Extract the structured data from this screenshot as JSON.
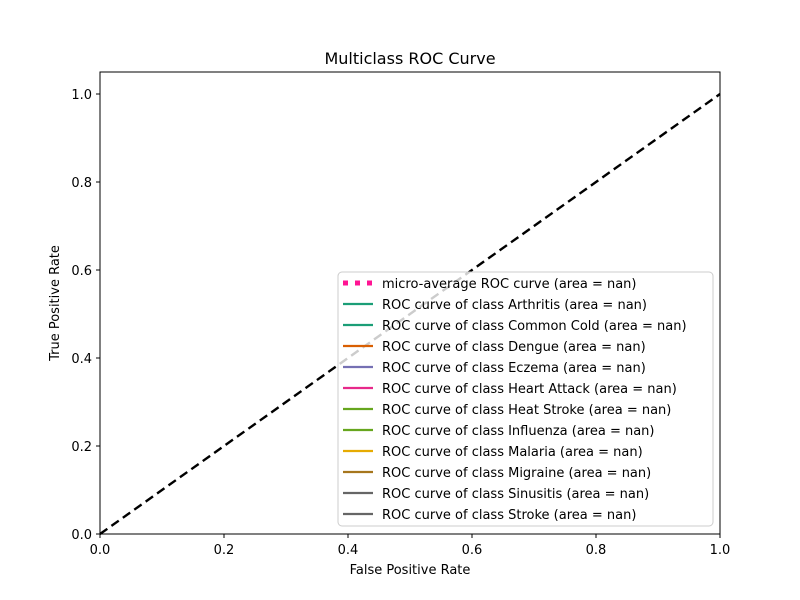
{
  "chart_data": {
    "type": "line",
    "title": "Multiclass ROC Curve",
    "xlabel": "False Positive Rate",
    "ylabel": "True Positive Rate",
    "xlim": [
      0.0,
      1.0
    ],
    "ylim": [
      0.0,
      1.05
    ],
    "xticks": [
      "0.0",
      "0.2",
      "0.4",
      "0.6",
      "0.8",
      "1.0"
    ],
    "xtick_values": [
      0.0,
      0.2,
      0.4,
      0.6,
      0.8,
      1.0
    ],
    "yticks": [
      "0.0",
      "0.2",
      "0.4",
      "0.6",
      "0.8",
      "1.0"
    ],
    "ytick_values": [
      0.0,
      0.2,
      0.4,
      0.6,
      0.8,
      1.0
    ],
    "grid": false,
    "legend_position": "lower-right",
    "reference_line": {
      "x": [
        0.0,
        1.0
      ],
      "y": [
        0.0,
        1.0
      ],
      "color": "#000000",
      "style": "dashed"
    },
    "series": [
      {
        "name": "micro-average ROC curve (area = nan)",
        "color": "#ff1493",
        "style": "dotted",
        "x": [],
        "y": []
      },
      {
        "name": "ROC curve of class Arthritis (area = nan)",
        "color": "#1b9e77",
        "style": "solid",
        "x": [],
        "y": []
      },
      {
        "name": "ROC curve of class Common Cold (area = nan)",
        "color": "#1b9e77",
        "style": "solid",
        "x": [],
        "y": []
      },
      {
        "name": "ROC curve of class Dengue (area = nan)",
        "color": "#d95f02",
        "style": "solid",
        "x": [],
        "y": []
      },
      {
        "name": "ROC curve of class Eczema (area = nan)",
        "color": "#7570b3",
        "style": "solid",
        "x": [],
        "y": []
      },
      {
        "name": "ROC curve of class Heart Attack (area = nan)",
        "color": "#e7298a",
        "style": "solid",
        "x": [],
        "y": []
      },
      {
        "name": "ROC curve of class Heat Stroke (area = nan)",
        "color": "#66a61e",
        "style": "solid",
        "x": [],
        "y": []
      },
      {
        "name": "ROC curve of class Influenza (area = nan)",
        "color": "#66a61e",
        "style": "solid",
        "x": [],
        "y": []
      },
      {
        "name": "ROC curve of class Malaria (area = nan)",
        "color": "#e6ab02",
        "style": "solid",
        "x": [],
        "y": []
      },
      {
        "name": "ROC curve of class Migraine (area = nan)",
        "color": "#a6761d",
        "style": "solid",
        "x": [],
        "y": []
      },
      {
        "name": "ROC curve of class Sinusitis (area = nan)",
        "color": "#666666",
        "style": "solid",
        "x": [],
        "y": []
      },
      {
        "name": "ROC curve of class Stroke (area = nan)",
        "color": "#666666",
        "style": "solid",
        "x": [],
        "y": []
      }
    ]
  }
}
